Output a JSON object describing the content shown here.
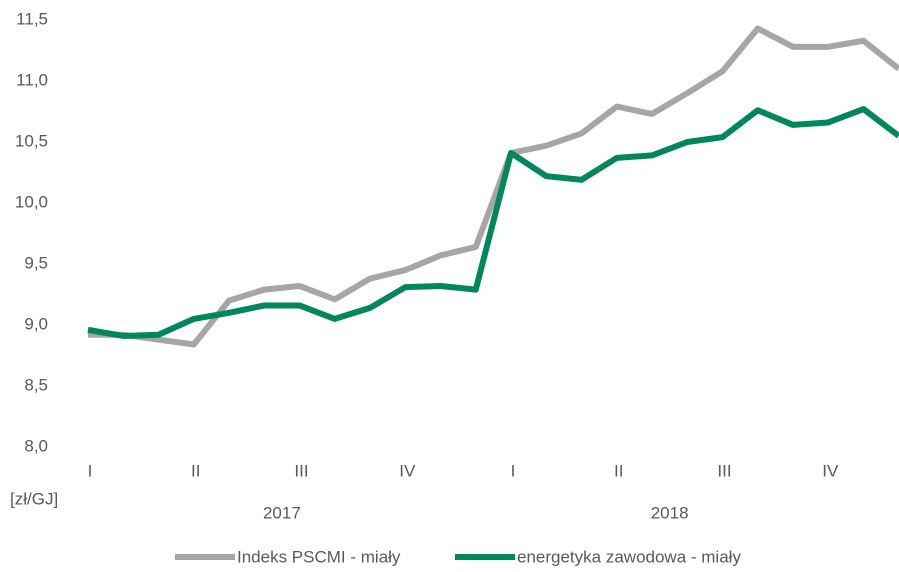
{
  "chart_data": {
    "type": "line",
    "y_label": "[zł/GJ]",
    "categories": [
      "I",
      null,
      null,
      "II",
      null,
      null,
      "III",
      null,
      null,
      "IV",
      null,
      null,
      "I",
      null,
      null,
      "II",
      null,
      null,
      "III",
      null,
      null,
      "IV",
      null,
      null
    ],
    "years": [
      "2017",
      "2018"
    ],
    "series": [
      {
        "name": "Indeks PSCMI - miały",
        "color": "#a6a6a6",
        "values": [
          8.92,
          8.92,
          8.88,
          8.84,
          9.2,
          9.29,
          9.32,
          9.21,
          9.38,
          9.45,
          9.57,
          9.64,
          10.41,
          10.47,
          10.57,
          10.79,
          10.73,
          10.9,
          11.08,
          11.43,
          11.28,
          11.28,
          11.33,
          11.1
        ]
      },
      {
        "name": "energetyka zawodowa - miały",
        "color": "#00875a",
        "values": [
          8.96,
          8.91,
          8.92,
          9.05,
          9.1,
          9.16,
          9.16,
          9.05,
          9.14,
          9.31,
          9.32,
          9.29,
          10.41,
          10.22,
          10.19,
          10.37,
          10.39,
          10.5,
          10.54,
          10.76,
          10.64,
          10.66,
          10.77,
          10.55
        ]
      }
    ],
    "ylim": [
      8,
      11.5
    ],
    "yticks": [
      {
        "value": 8,
        "label": "8,0"
      },
      {
        "value": 8.5,
        "label": "8,5"
      },
      {
        "value": 9,
        "label": "9,0"
      },
      {
        "value": 9.5,
        "label": "9,5"
      },
      {
        "value": 10,
        "label": "10,0"
      },
      {
        "value": 10.5,
        "label": "10,5"
      },
      {
        "value": 11,
        "label": "11,0"
      },
      {
        "value": 11.5,
        "label": "11,5"
      }
    ],
    "grid": false,
    "legend": "bottom"
  }
}
